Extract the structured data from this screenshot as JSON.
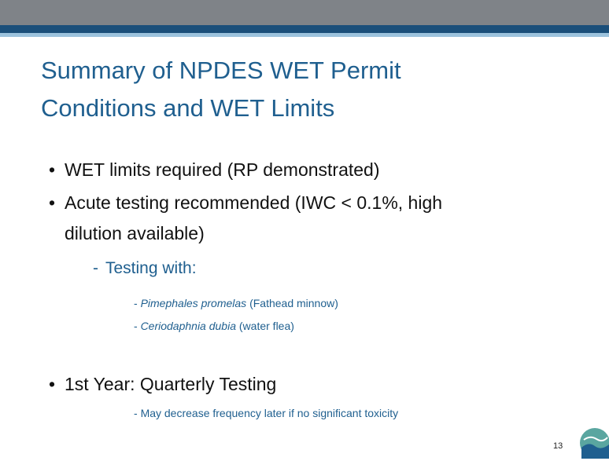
{
  "slide": {
    "title_lines": [
      "Summary of NPDES WET Permit",
      "Conditions and WET Limits"
    ],
    "bullets": [
      {
        "lines": [
          "WET limits required (RP demonstrated)"
        ]
      },
      {
        "lines": [
          "Acute testing recommended (IWC < 0.1%, high",
          "dilution available)"
        ],
        "sub": {
          "text": "Testing with:",
          "species": [
            {
              "name": "Pimephales promelas",
              "common": "(Fathead minnow)"
            },
            {
              "name": "Ceriodaphnia dubia",
              "common": "(water flea)"
            }
          ]
        }
      },
      {
        "lines": [
          "1st Year: Quarterly Testing"
        ],
        "note": "May decrease frequency later if no significant toxicity"
      }
    ],
    "page_number": "13"
  }
}
